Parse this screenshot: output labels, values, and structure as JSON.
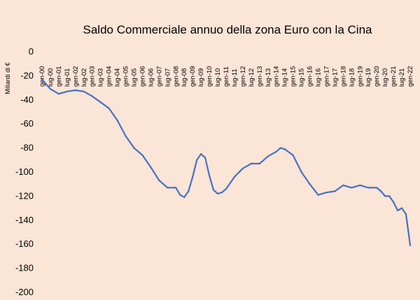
{
  "chart_data": {
    "type": "line",
    "title": "Saldo Commerciale annuo della zona Euro con la Cina",
    "ylabel": "Miliardi di €",
    "xlabel": "",
    "ylim": [
      -200,
      0
    ],
    "yticks": [
      0,
      -20,
      -40,
      -60,
      -80,
      -100,
      -120,
      -140,
      -160,
      -180,
      -200
    ],
    "ytick_labels": [
      "0",
      "-20",
      "-40",
      "-60",
      "-80",
      "-100",
      "-120",
      "-140",
      "-160",
      "-180",
      "-200"
    ],
    "xtick_labels": [
      "gen-00",
      "lug-00",
      "gen-01",
      "lug-01",
      "gen-02",
      "lug-02",
      "gen-03",
      "lug-03",
      "gen-04",
      "lug-04",
      "gen-05",
      "lug-05",
      "gen-06",
      "lug-06",
      "gen-07",
      "lug-07",
      "gen-08",
      "lug-08",
      "gen-09",
      "lug-09",
      "gen-10",
      "lug-10",
      "gen-11",
      "lug-11",
      "gen-12",
      "lug-12",
      "gen-13",
      "lug-13",
      "gen-14",
      "lug-14",
      "gen-15",
      "lug-15",
      "gen-16",
      "lug-16",
      "gen-17",
      "lug-17",
      "gen-18",
      "lug-18",
      "gen-19",
      "lug-19",
      "gen-20",
      "lug-20",
      "gen-21",
      "lug-21",
      "gen-22"
    ],
    "grid": false,
    "legend": "none",
    "line_color": "#4472c4",
    "series": [
      {
        "x": [
          0,
          0.5,
          1,
          1.5,
          2,
          2.5,
          3,
          3.5,
          4,
          4.5,
          5,
          5.5,
          6,
          6.5,
          7,
          7.5,
          8,
          8.25,
          8.5,
          8.75,
          9,
          9.25,
          9.5,
          9.75,
          10,
          10.25,
          10.5,
          10.75,
          11,
          11.5,
          12,
          12.5,
          13,
          13.5,
          14,
          14.25,
          14.5,
          15,
          15.5,
          16,
          16.5,
          17,
          17.5,
          18,
          18.5,
          19,
          19.5,
          20,
          20.25,
          20.5,
          20.75,
          21,
          21.25,
          21.5,
          21.75,
          22
        ],
        "values": [
          -23,
          -31,
          -35,
          -33,
          -32,
          -33,
          -37,
          -42,
          -47,
          -57,
          -70,
          -80,
          -86,
          -96,
          -107,
          -113,
          -113,
          -119,
          -121,
          -116,
          -104,
          -90,
          -85,
          -88,
          -103,
          -115,
          -118,
          -117,
          -114,
          -104,
          -97,
          -93,
          -93,
          -87,
          -83,
          -80,
          -81,
          -86,
          -100,
          -110,
          -119,
          -117,
          -116,
          -111,
          -113,
          -111,
          -113,
          -113,
          -116,
          -120,
          -120,
          -125,
          -132,
          -130,
          -135,
          -161
        ]
      }
    ]
  }
}
